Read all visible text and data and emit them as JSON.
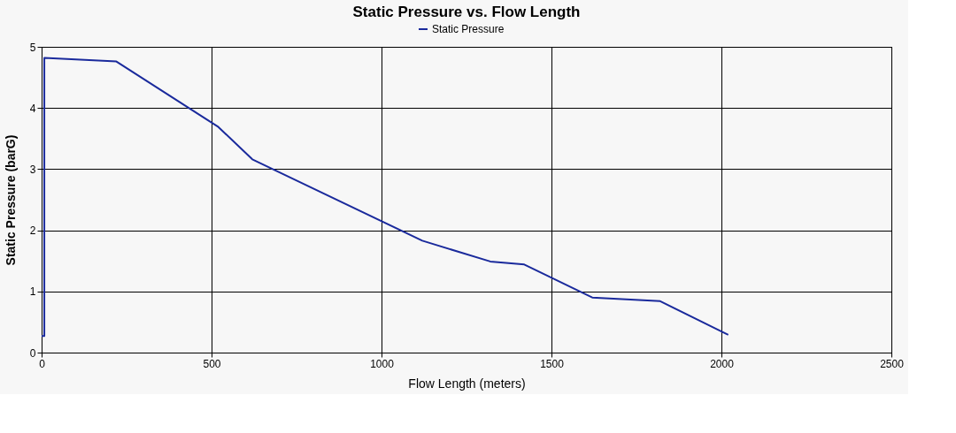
{
  "chart_data": {
    "type": "line",
    "title": "Static Pressure vs. Flow Length",
    "xlabel": "Flow Length (meters)",
    "ylabel": "Static Pressure (barG)",
    "series": [
      {
        "name": "Static Pressure",
        "color": "#1a2a9c",
        "x": [
          0,
          8,
          8,
          220,
          520,
          620,
          1120,
          1320,
          1420,
          1620,
          1820,
          2020
        ],
        "values": [
          0.27,
          0.27,
          4.82,
          4.76,
          3.69,
          3.16,
          1.83,
          1.49,
          1.44,
          0.9,
          0.84,
          0.29
        ]
      }
    ],
    "xlim": [
      0,
      2500
    ],
    "xticks": [
      0,
      500,
      1000,
      1500,
      2000,
      2500
    ],
    "ylim": [
      0,
      5
    ],
    "yticks": [
      0,
      1,
      2,
      3,
      4,
      5
    ],
    "grid": true,
    "legend": "top",
    "marker": "none",
    "line_style": "solid"
  }
}
